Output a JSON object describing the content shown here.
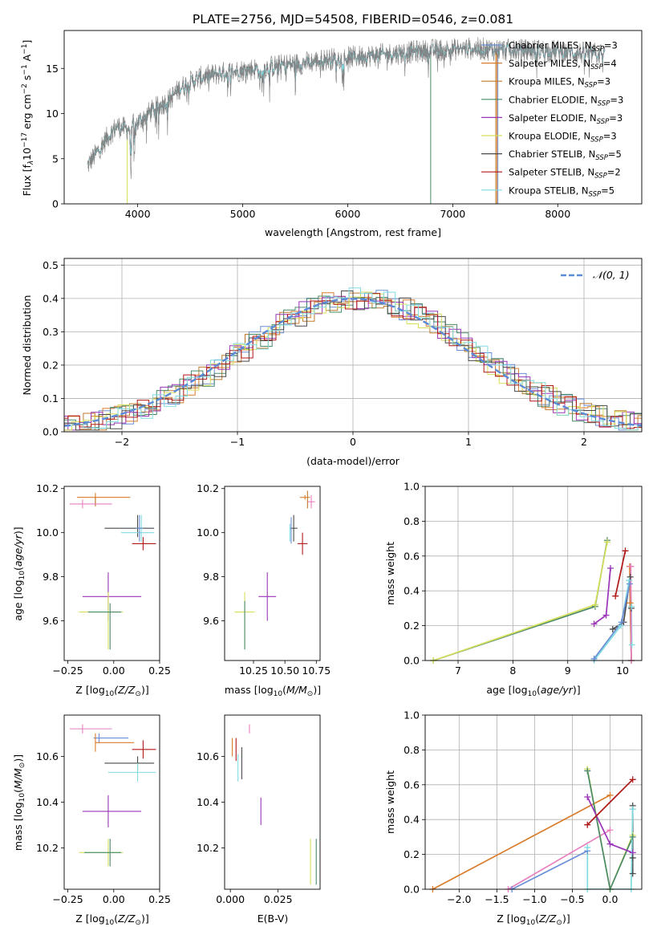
{
  "colors": {
    "Chabrier MILES": "#6a8fd6",
    "Salpeter MILES": "#d97c2b",
    "Kroupa MILES": "#c07a2c",
    "Chabrier ELODIE": "#4a8a6a",
    "Salpeter ELODIE": "#9a35b8",
    "Kroupa ELODIE": "#d6df5a",
    "Chabrier STELIB": "#4a4a4a",
    "Salpeter STELIB": "#b01818",
    "Kroupa STELIB": "#7fdbe0",
    "data": "#808080",
    "pink": "#e87fbf"
  },
  "chart_data": [
    {
      "id": "spectrum",
      "type": "line",
      "title": "PLATE=2756, MJD=54508, FIBERID=0546, z=0.081",
      "xlabel": "wavelength [Angstrom, rest frame]",
      "ylabel_parts": [
        "Flux [f",
        "λ",
        "10",
        "−17",
        " erg cm",
        "−2",
        " s",
        "−1",
        " A",
        "−1",
        "]"
      ],
      "xlim": [
        3300,
        8800
      ],
      "ylim": [
        0,
        19.2
      ],
      "xticks": [
        "4000",
        "5000",
        "6000",
        "7000",
        "8000"
      ],
      "yticks": [
        "0",
        "5",
        "10",
        "15"
      ],
      "legend": [
        {
          "model": "Chabrier MILES",
          "nssp": "3"
        },
        {
          "model": "Salpeter MILES",
          "nssp": "4"
        },
        {
          "model": "Kroupa MILES",
          "nssp": "3"
        },
        {
          "model": "Chabrier ELODIE",
          "nssp": "3"
        },
        {
          "model": "Salpeter ELODIE",
          "nssp": "3"
        },
        {
          "model": "Kroupa ELODIE",
          "nssp": "3"
        },
        {
          "model": "Chabrier STELIB",
          "nssp": "5"
        },
        {
          "model": "Salpeter STELIB",
          "nssp": "2"
        },
        {
          "model": "Kroupa STELIB",
          "nssp": "5"
        }
      ],
      "legend_n_label": "N",
      "legend_n_sub": "SSP",
      "continuum": [
        [
          3520,
          4.2
        ],
        [
          3600,
          5.5
        ],
        [
          3700,
          7.2
        ],
        [
          3800,
          8.6
        ],
        [
          3900,
          8.3
        ],
        [
          4000,
          9.0
        ],
        [
          4100,
          10.0
        ],
        [
          4200,
          10.8
        ],
        [
          4300,
          11.5
        ],
        [
          4400,
          12.8
        ],
        [
          4500,
          13.5
        ],
        [
          4600,
          14.0
        ],
        [
          4800,
          14.5
        ],
        [
          5000,
          14.8
        ],
        [
          5200,
          15.1
        ],
        [
          5400,
          15.4
        ],
        [
          5600,
          15.6
        ],
        [
          5800,
          16.0
        ],
        [
          6000,
          16.2
        ],
        [
          6200,
          16.4
        ],
        [
          6400,
          16.6
        ],
        [
          6600,
          16.8
        ],
        [
          6800,
          17.0
        ],
        [
          7000,
          17.1
        ],
        [
          7200,
          17.2
        ],
        [
          7400,
          17.1
        ],
        [
          7600,
          17.0
        ],
        [
          7800,
          17.0
        ],
        [
          8000,
          16.9
        ],
        [
          8200,
          16.7
        ],
        [
          8400,
          16.6
        ]
      ]
    },
    {
      "id": "residuals",
      "type": "area",
      "xlabel": "(data-model)/error",
      "ylabel": "Normed distribution",
      "xlim": [
        -2.5,
        2.5
      ],
      "ylim": [
        0,
        0.52
      ],
      "xticks": [
        "−2",
        "−1",
        "0",
        "1",
        "2"
      ],
      "yticks": [
        "0.0",
        "0.1",
        "0.2",
        "0.3",
        "0.4",
        "0.5"
      ],
      "legend": "𝒩(0, 1)",
      "grid": true
    },
    {
      "id": "age_vs_Z",
      "type": "scatter",
      "xlabel": "Z [log",
      "xlabel_tail": "(Z/Z",
      "ylabel": "age  [log",
      "xlim": [
        -0.27,
        0.25
      ],
      "ylim": [
        9.42,
        10.21
      ],
      "xticks": [
        "−0.25",
        "0.00",
        "0.25"
      ],
      "yticks": [
        "9.6",
        "9.8",
        "10.0",
        "10.2"
      ],
      "points": [
        {
          "model": "Salpeter MILES",
          "x": -0.1,
          "xerr": [
            0.1,
            0.19
          ],
          "y": 10.16,
          "yerr": [
            0.04,
            0.02
          ]
        },
        {
          "model": "Kroupa MILES",
          "x": -0.1,
          "xerr": [
            0.0,
            0.0
          ],
          "y": 10.14,
          "yerr": [
            0.02,
            0.02
          ]
        },
        {
          "model": "pink",
          "x": -0.17,
          "xerr": [
            0.07,
            0.16
          ],
          "y": 10.13,
          "yerr": [
            0.02,
            0.02
          ]
        },
        {
          "model": "Chabrier STELIB",
          "x": 0.13,
          "xerr": [
            0.18,
            0.09
          ],
          "y": 10.02,
          "yerr": [
            0.04,
            0.06
          ]
        },
        {
          "model": "Kroupa STELIB",
          "x": 0.15,
          "xerr": [
            0.11,
            0.07
          ],
          "y": 10.0,
          "yerr": [
            0.04,
            0.08
          ]
        },
        {
          "model": "Chabrier MILES",
          "x": 0.14,
          "xerr": [
            0.02,
            0.02
          ],
          "y": 10.02,
          "yerr": [
            0.06,
            0.06
          ]
        },
        {
          "model": "Salpeter STELIB",
          "x": 0.16,
          "xerr": [
            0.06,
            0.07
          ],
          "y": 9.95,
          "yerr": [
            0.03,
            0.03
          ]
        },
        {
          "model": "Salpeter ELODIE",
          "x": -0.03,
          "xerr": [
            0.14,
            0.18
          ],
          "y": 9.71,
          "yerr": [
            0.11,
            0.11
          ]
        },
        {
          "model": "Kroupa ELODIE",
          "x": -0.03,
          "xerr": [
            0.16,
            0.08
          ],
          "y": 9.64,
          "yerr": [
            0.17,
            0.09
          ]
        },
        {
          "model": "Chabrier ELODIE",
          "x": -0.02,
          "xerr": [
            0.12,
            0.06
          ],
          "y": 9.64,
          "yerr": [
            0.17,
            0.04
          ]
        }
      ]
    },
    {
      "id": "age_vs_mass",
      "type": "scatter",
      "xlabel": "mass [log",
      "xlim": [
        10.02,
        10.78
      ],
      "ylim": [
        9.42,
        10.21
      ],
      "xticks": [
        "10.25",
        "10.50",
        "10.75"
      ],
      "yticks": [
        "9.6",
        "9.8",
        "10.0",
        "10.2"
      ],
      "points": [
        {
          "model": "Salpeter MILES",
          "x": 10.66,
          "xerr": [
            0.04,
            0.04
          ],
          "y": 10.16,
          "yerr": [
            0.01,
            0.01
          ]
        },
        {
          "model": "pink",
          "x": 10.71,
          "xerr": [
            0.03,
            0.03
          ],
          "y": 10.14,
          "yerr": [
            0.03,
            0.03
          ]
        },
        {
          "model": "Kroupa MILES",
          "x": 10.68,
          "xerr": [
            0.0,
            0.0
          ],
          "y": 10.15,
          "yerr": [
            0.04,
            0.04
          ]
        },
        {
          "model": "Chabrier STELIB",
          "x": 10.57,
          "xerr": [
            0.03,
            0.03
          ],
          "y": 10.02,
          "yerr": [
            0.06,
            0.06
          ]
        },
        {
          "model": "Kroupa STELIB",
          "x": 10.54,
          "xerr": [
            0.0,
            0.0
          ],
          "y": 10.0,
          "yerr": [
            0.04,
            0.04
          ]
        },
        {
          "model": "Chabrier MILES",
          "x": 10.55,
          "xerr": [
            0.0,
            0.0
          ],
          "y": 10.01,
          "yerr": [
            0.06,
            0.06
          ]
        },
        {
          "model": "Salpeter STELIB",
          "x": 10.64,
          "xerr": [
            0.04,
            0.04
          ],
          "y": 9.95,
          "yerr": [
            0.05,
            0.05
          ]
        },
        {
          "model": "Salpeter ELODIE",
          "x": 10.36,
          "xerr": [
            0.07,
            0.07
          ],
          "y": 9.71,
          "yerr": [
            0.11,
            0.11
          ]
        },
        {
          "model": "Kroupa ELODIE",
          "x": 10.18,
          "xerr": [
            0.08,
            0.08
          ],
          "y": 9.64,
          "yerr": [
            0.17,
            0.09
          ]
        },
        {
          "model": "Chabrier ELODIE",
          "x": 10.18,
          "xerr": [
            0.0,
            0.0
          ],
          "y": 9.64,
          "yerr": [
            0.17,
            0.05
          ]
        }
      ]
    },
    {
      "id": "weight_vs_age",
      "type": "line",
      "xlabel": "age  [log",
      "ylabel": "mass weight",
      "xlim": [
        6.4,
        10.35
      ],
      "ylim": [
        0,
        1.0
      ],
      "xticks": [
        "7",
        "8",
        "9",
        "10"
      ],
      "yticks": [
        "0.0",
        "0.2",
        "0.4",
        "0.6",
        "0.8",
        "1.0"
      ],
      "grid": true,
      "series": [
        {
          "model": "Chabrier ELODIE",
          "x": [
            6.55,
            9.5,
            9.72
          ],
          "y": [
            0.0,
            0.31,
            0.69
          ]
        },
        {
          "model": "Kroupa ELODIE",
          "x": [
            6.55,
            9.5,
            9.72
          ],
          "y": [
            0.0,
            0.32,
            0.68
          ]
        },
        {
          "model": "Salpeter ELODIE",
          "x": [
            9.48,
            9.7,
            9.78
          ],
          "y": [
            0.21,
            0.26,
            0.53
          ]
        },
        {
          "model": "Salpeter STELIB",
          "x": [
            9.87,
            10.05
          ],
          "y": [
            0.37,
            0.63
          ]
        },
        {
          "model": "Chabrier STELIB",
          "x": [
            9.82,
            10.02,
            10.14,
            10.16
          ],
          "y": [
            0.18,
            0.22,
            0.48,
            0.3
          ]
        },
        {
          "model": "Kroupa STELIB",
          "x": [
            9.48,
            9.97,
            10.12,
            10.16,
            10.17
          ],
          "y": [
            0.0,
            0.2,
            0.46,
            0.31,
            0.09
          ]
        },
        {
          "model": "Chabrier MILES",
          "x": [
            9.48,
            9.98,
            10.13,
            10.16
          ],
          "y": [
            0.01,
            0.22,
            0.44,
            0.0
          ]
        },
        {
          "model": "Salpeter MILES",
          "x": [
            10.13,
            10.14,
            10.16
          ],
          "y": [
            0.54,
            0.33,
            0.0
          ]
        },
        {
          "model": "pink",
          "x": [
            10.15,
            10.16
          ],
          "y": [
            0.54,
            0.0
          ]
        }
      ]
    },
    {
      "id": "mass_vs_Z",
      "type": "scatter",
      "xlabel": "Z [log",
      "ylabel": "mass [log",
      "xlim": [
        -0.27,
        0.25
      ],
      "ylim": [
        10.02,
        10.78
      ],
      "xticks": [
        "−0.25",
        "0.00",
        "0.25"
      ],
      "yticks": [
        "10.2",
        "10.4",
        "10.6"
      ],
      "points": [
        {
          "model": "pink",
          "x": -0.17,
          "xerr": [
            0.07,
            0.16
          ],
          "y": 10.72,
          "yerr": [
            0.02,
            0.02
          ]
        },
        {
          "model": "Chabrier MILES",
          "x": -0.08,
          "xerr": [
            0.03,
            0.16
          ],
          "y": 10.68,
          "yerr": [
            0.02,
            0.02
          ]
        },
        {
          "model": "Salpeter MILES",
          "x": -0.1,
          "xerr": [
            0.0,
            0.21
          ],
          "y": 10.66,
          "yerr": [
            0.04,
            0.04
          ]
        },
        {
          "model": "Salpeter STELIB",
          "x": 0.16,
          "xerr": [
            0.06,
            0.07
          ],
          "y": 10.63,
          "yerr": [
            0.04,
            0.04
          ]
        },
        {
          "model": "Chabrier STELIB",
          "x": 0.13,
          "xerr": [
            0.18,
            0.09
          ],
          "y": 10.57,
          "yerr": [
            0.03,
            0.03
          ]
        },
        {
          "model": "Kroupa STELIB",
          "x": 0.13,
          "xerr": [
            0.16,
            0.1
          ],
          "y": 10.53,
          "yerr": [
            0.04,
            0.04
          ]
        },
        {
          "model": "Salpeter ELODIE",
          "x": -0.03,
          "xerr": [
            0.14,
            0.18
          ],
          "y": 10.36,
          "yerr": [
            0.07,
            0.07
          ]
        },
        {
          "model": "Kroupa ELODIE",
          "x": -0.03,
          "xerr": [
            0.16,
            0.08
          ],
          "y": 10.18,
          "yerr": [
            0.06,
            0.06
          ]
        },
        {
          "model": "Chabrier ELODIE",
          "x": -0.02,
          "xerr": [
            0.14,
            0.06
          ],
          "y": 10.18,
          "yerr": [
            0.06,
            0.06
          ]
        }
      ]
    },
    {
      "id": "mass_vs_EBV",
      "type": "scatter",
      "xlabel": "E(B-V)",
      "xlim": [
        -0.003,
        0.047
      ],
      "ylim": [
        10.02,
        10.78
      ],
      "xticks": [
        "0.000",
        "0.025"
      ],
      "yticks": [
        "10.2",
        "10.4",
        "10.6"
      ],
      "points": [
        {
          "model": "pink",
          "x": 0.01,
          "y": 10.72,
          "yerr": [
            0.02,
            0.02
          ]
        },
        {
          "model": "Salpeter STELIB",
          "x": 0.003,
          "y": 10.63,
          "yerr": [
            0.05,
            0.05
          ]
        },
        {
          "model": "Salpeter MILES",
          "x": 0.001,
          "y": 10.64,
          "yerr": [
            0.04,
            0.04
          ]
        },
        {
          "model": "Chabrier STELIB",
          "x": 0.006,
          "y": 10.57,
          "yerr": [
            0.07,
            0.07
          ]
        },
        {
          "model": "Kroupa STELIB",
          "x": 0.004,
          "y": 10.55,
          "yerr": [
            0.06,
            0.06
          ]
        },
        {
          "model": "Salpeter ELODIE",
          "x": 0.016,
          "y": 10.36,
          "yerr": [
            0.06,
            0.06
          ]
        },
        {
          "model": "Kroupa ELODIE",
          "x": 0.042,
          "y": 10.14,
          "yerr": [
            0.1,
            0.1
          ]
        },
        {
          "model": "Chabrier ELODIE",
          "x": 0.045,
          "y": 10.14,
          "yerr": [
            0.1,
            0.1
          ]
        }
      ]
    },
    {
      "id": "weight_vs_Z",
      "type": "line",
      "xlabel": "Z [log",
      "ylabel": "mass weight",
      "xlim": [
        -2.45,
        0.42
      ],
      "ylim": [
        0,
        1.0
      ],
      "xticks": [
        "−2.0",
        "−1.5",
        "−1.0",
        "−0.5",
        "0.0"
      ],
      "yticks": [
        "0.0",
        "0.2",
        "0.4",
        "0.6",
        "0.8",
        "1.0"
      ],
      "grid": true,
      "series": [
        {
          "model": "Salpeter MILES",
          "x": [
            -2.35,
            0.0
          ],
          "y": [
            0.0,
            0.54
          ]
        },
        {
          "model": "Chabrier MILES",
          "x": [
            -1.3,
            -0.3
          ],
          "y": [
            0.0,
            0.22
          ]
        },
        {
          "model": "pink",
          "x": [
            -1.35,
            0.0
          ],
          "y": [
            0.0,
            0.34
          ]
        },
        {
          "model": "Kroupa ELODIE",
          "x": [
            -0.3,
            0.0,
            0.3
          ],
          "y": [
            0.69,
            0.0,
            0.31
          ]
        },
        {
          "model": "Chabrier ELODIE",
          "x": [
            -0.3,
            0.0,
            0.3
          ],
          "y": [
            0.68,
            0.0,
            0.3
          ]
        },
        {
          "model": "Salpeter ELODIE",
          "x": [
            -0.3,
            0.0,
            0.3
          ],
          "y": [
            0.53,
            0.26,
            0.21
          ]
        },
        {
          "model": "Salpeter STELIB",
          "x": [
            -0.3,
            0.3
          ],
          "y": [
            0.37,
            0.63
          ]
        },
        {
          "model": "Chabrier STELIB",
          "x": [
            0.3,
            0.3,
            0.3
          ],
          "y": [
            0.48,
            0.18,
            0.09
          ]
        },
        {
          "model": "Kroupa STELIB",
          "x": [
            -0.3,
            -0.3,
            0.28,
            0.3
          ],
          "y": [
            0.24,
            0.0,
            0.0,
            0.46
          ]
        }
      ]
    }
  ]
}
